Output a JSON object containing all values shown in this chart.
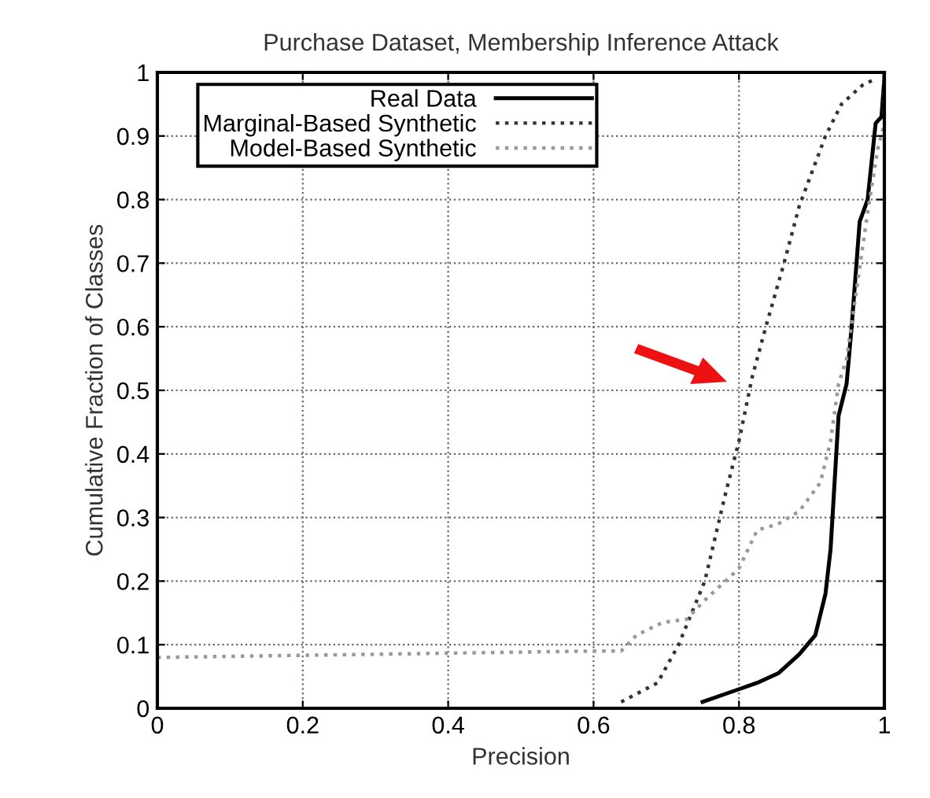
{
  "chart_data": {
    "type": "line",
    "title": "Purchase Dataset, Membership Inference Attack",
    "xlabel": "Precision",
    "ylabel": "Cumulative Fraction of Classes",
    "xlim": [
      0,
      1
    ],
    "ylim": [
      0,
      1
    ],
    "xticks": [
      0,
      0.2,
      0.4,
      0.6,
      0.8,
      1
    ],
    "yticks": [
      0,
      0.1,
      0.2,
      0.3,
      0.4,
      0.5,
      0.6,
      0.7,
      0.8,
      0.9,
      1
    ],
    "grid": true,
    "legend": "top",
    "marker": "none",
    "series": [
      {
        "name": "Real Data",
        "color": "#000000",
        "line_style": "solid",
        "x": [
          0.75,
          0.8,
          0.825,
          0.854,
          0.883,
          0.905,
          0.919,
          0.926,
          0.937,
          0.948,
          0.955,
          0.966,
          0.977,
          0.988,
          0.996,
          1.0,
          1.0
        ],
        "values": [
          0.01,
          0.03,
          0.04,
          0.055,
          0.085,
          0.115,
          0.18,
          0.25,
          0.46,
          0.51,
          0.6,
          0.765,
          0.8,
          0.92,
          0.93,
          0.99,
          1.0
        ]
      },
      {
        "name": "Marginal-Based Synthetic",
        "color": "#333333",
        "line_style": "dotted",
        "x": [
          0.638,
          0.688,
          0.717,
          0.753,
          0.782,
          0.8,
          0.818,
          0.837,
          0.862,
          0.883,
          0.919,
          0.941,
          0.97,
          0.988
        ],
        "values": [
          0.01,
          0.04,
          0.1,
          0.2,
          0.34,
          0.42,
          0.52,
          0.6,
          0.7,
          0.79,
          0.9,
          0.95,
          0.98,
          0.99
        ]
      },
      {
        "name": "Model-Based Synthetic",
        "color": "#999999",
        "line_style": "dotted",
        "x": [
          0,
          0.6,
          0.638,
          0.659,
          0.695,
          0.728,
          0.753,
          0.8,
          0.825,
          0.854,
          0.883,
          0.912,
          0.926,
          0.937,
          0.948,
          0.962,
          0.977,
          0.991,
          1.0,
          1.0
        ],
        "values": [
          0.08,
          0.09,
          0.09,
          0.115,
          0.135,
          0.14,
          0.17,
          0.22,
          0.28,
          0.29,
          0.31,
          0.355,
          0.42,
          0.51,
          0.55,
          0.66,
          0.78,
          0.88,
          0.92,
          1.0
        ]
      }
    ]
  }
}
